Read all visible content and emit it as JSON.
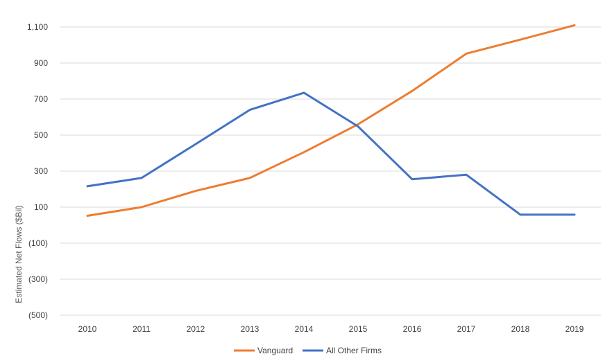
{
  "chart_data": {
    "type": "line",
    "title": "",
    "xlabel": "",
    "ylabel": "Estimated Net Flows ($Bil)",
    "categories": [
      "2010",
      "2011",
      "2012",
      "2013",
      "2014",
      "2015",
      "2016",
      "2017",
      "2018",
      "2019"
    ],
    "ylim": [
      -500,
      1100
    ],
    "yticks": [
      {
        "value": 1100,
        "label": "1,100"
      },
      {
        "value": 900,
        "label": "900"
      },
      {
        "value": 700,
        "label": "700"
      },
      {
        "value": 500,
        "label": "500"
      },
      {
        "value": 300,
        "label": "300"
      },
      {
        "value": 100,
        "label": "100"
      },
      {
        "value": -100,
        "label": "(100)"
      },
      {
        "value": -300,
        "label": "(300)"
      },
      {
        "value": -500,
        "label": "(500)"
      }
    ],
    "grid": true,
    "legend_position": "bottom",
    "negative_tick_color": "#e00000",
    "series": [
      {
        "name": "Vanguard",
        "color": "#ed7d31",
        "values": [
          52,
          100,
          190,
          262,
          405,
          560,
          745,
          952,
          1030,
          1110
        ]
      },
      {
        "name": "All Other Firms",
        "color": "#4472c4",
        "values": [
          216,
          262,
          450,
          640,
          735,
          548,
          255,
          280,
          58,
          58
        ]
      }
    ]
  }
}
